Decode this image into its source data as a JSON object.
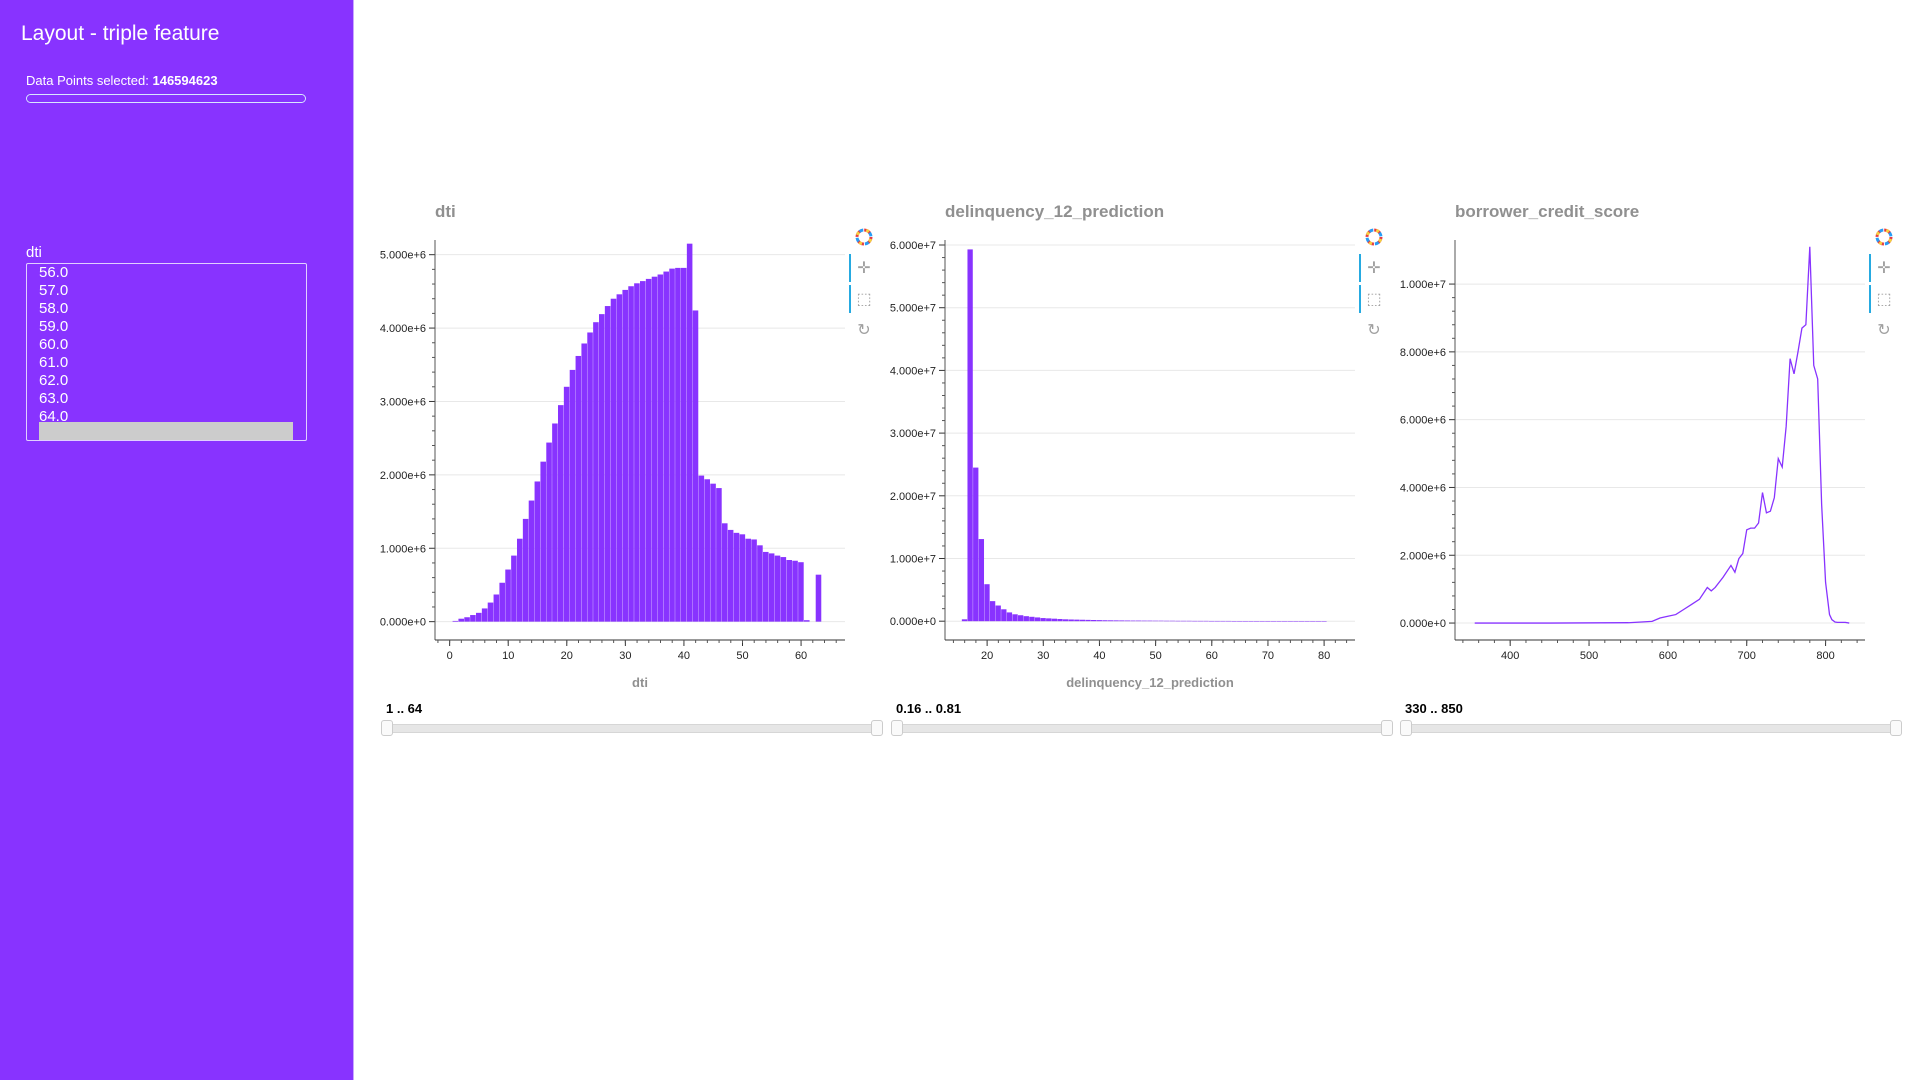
{
  "sidebar": {
    "title": "Layout - triple feature",
    "data_points_label": "Data Points selected:",
    "data_points_value": "146594623",
    "progress_fraction": 1.0,
    "list_label": "dti",
    "list_items": [
      "56.0",
      "57.0",
      "58.0",
      "59.0",
      "60.0",
      "61.0",
      "62.0",
      "63.0",
      "64.0"
    ]
  },
  "colors": {
    "sidebar_bg": "#8833ff",
    "bar_fill": "#8833ff",
    "toolbar_active": "#26aae1",
    "title_gray": "#909090"
  },
  "toolbar_icons": [
    "bokeh-logo-icon",
    "pan-icon",
    "box-select-icon",
    "reset-icon"
  ],
  "sliders": [
    {
      "label": "1 .. 64",
      "low": 1,
      "high": 64
    },
    {
      "label": "0.16 .. 0.81",
      "low": 0.16,
      "high": 0.81
    },
    {
      "label": "330 .. 850",
      "low": 330,
      "high": 850
    }
  ],
  "chart_data": [
    {
      "type": "bar",
      "title": "dti",
      "xlabel": "dti",
      "ylabel": "",
      "xlim": [
        -2.5,
        67.5
      ],
      "ylim": [
        -250000,
        5200000
      ],
      "xticks": [
        0,
        10,
        20,
        30,
        40,
        50,
        60
      ],
      "yticks": [
        0,
        1000000,
        2000000,
        3000000,
        4000000,
        5000000
      ],
      "ytick_labels": [
        "0.000e+0",
        "1.000e+6",
        "2.000e+6",
        "3.000e+6",
        "4.000e+6",
        "5.000e+6"
      ],
      "grid": true,
      "bar_width": 1,
      "x": [
        1,
        2,
        3,
        4,
        5,
        6,
        7,
        8,
        9,
        10,
        11,
        12,
        13,
        14,
        15,
        16,
        17,
        18,
        19,
        20,
        21,
        22,
        23,
        24,
        25,
        26,
        27,
        28,
        29,
        30,
        31,
        32,
        33,
        34,
        35,
        36,
        37,
        38,
        39,
        40,
        41,
        42,
        43,
        44,
        45,
        46,
        47,
        48,
        49,
        50,
        51,
        52,
        53,
        54,
        55,
        56,
        57,
        58,
        59,
        60,
        61,
        62,
        63,
        64
      ],
      "values": [
        10000,
        40000,
        60000,
        90000,
        120000,
        180000,
        260000,
        370000,
        530000,
        710000,
        900000,
        1130000,
        1400000,
        1650000,
        1910000,
        2180000,
        2440000,
        2700000,
        2950000,
        3200000,
        3430000,
        3620000,
        3790000,
        3940000,
        4080000,
        4190000,
        4300000,
        4400000,
        4460000,
        4520000,
        4570000,
        4610000,
        4640000,
        4670000,
        4700000,
        4730000,
        4770000,
        4810000,
        4820000,
        4820000,
        5150000,
        4240000,
        1990000,
        1940000,
        1880000,
        1820000,
        1340000,
        1250000,
        1210000,
        1190000,
        1130000,
        1120000,
        1040000,
        950000,
        930000,
        900000,
        880000,
        840000,
        830000,
        810000,
        20000,
        0,
        640000,
        0
      ]
    },
    {
      "type": "bar",
      "title": "delinquency_12_prediction",
      "xlabel": "delinquency_12_prediction",
      "ylabel": "",
      "xlim": [
        12.5,
        85.5
      ],
      "ylim": [
        -3000000,
        60800000
      ],
      "xticks": [
        20,
        30,
        40,
        50,
        60,
        70,
        80
      ],
      "yticks": [
        0,
        10000000,
        20000000,
        30000000,
        40000000,
        50000000,
        60000000
      ],
      "ytick_labels": [
        "0.000e+0",
        "1.000e+7",
        "2.000e+7",
        "3.000e+7",
        "4.000e+7",
        "5.000e+7",
        "6.000e+7"
      ],
      "grid": true,
      "bar_width": 1,
      "x": [
        16,
        17,
        18,
        19,
        20,
        21,
        22,
        23,
        24,
        25,
        26,
        27,
        28,
        29,
        30,
        31,
        32,
        33,
        34,
        35,
        36,
        37,
        38,
        39,
        40,
        41,
        42,
        43,
        44,
        45,
        46,
        47,
        48,
        49,
        50,
        51,
        52,
        53,
        54,
        55,
        56,
        57,
        58,
        59,
        60,
        61,
        62,
        63,
        64,
        65,
        66,
        67,
        68,
        69,
        70,
        71,
        72,
        73,
        74,
        75,
        76,
        77,
        78,
        79,
        80
      ],
      "values": [
        300000,
        59300000,
        24500000,
        13100000,
        5900000,
        3200000,
        2500000,
        1900000,
        1400000,
        1100000,
        950000,
        800000,
        700000,
        600000,
        500000,
        450000,
        400000,
        350000,
        300000,
        270000,
        250000,
        230000,
        210000,
        190000,
        170000,
        150000,
        140000,
        130000,
        120000,
        110000,
        100000,
        100000,
        90000,
        90000,
        80000,
        80000,
        70000,
        70000,
        60000,
        60000,
        60000,
        50000,
        50000,
        50000,
        40000,
        40000,
        40000,
        40000,
        30000,
        30000,
        30000,
        30000,
        30000,
        30000,
        20000,
        20000,
        20000,
        20000,
        20000,
        20000,
        20000,
        20000,
        20000,
        20000,
        20000
      ]
    },
    {
      "type": "line",
      "title": "borrower_credit_score",
      "xlabel": "",
      "ylabel": "",
      "xlim": [
        330,
        850
      ],
      "ylim": [
        -500000,
        11300000
      ],
      "xticks": [
        400,
        500,
        600,
        700,
        800
      ],
      "yticks": [
        0,
        2000000,
        4000000,
        6000000,
        8000000,
        10000000
      ],
      "ytick_labels": [
        "0.000e+0",
        "2.000e+6",
        "4.000e+6",
        "6.000e+6",
        "8.000e+6",
        "1.000e+7"
      ],
      "grid": true,
      "x": [
        355,
        450,
        550,
        580,
        590,
        600,
        610,
        620,
        630,
        640,
        650,
        655,
        660,
        670,
        680,
        685,
        690,
        695,
        700,
        705,
        710,
        715,
        720,
        725,
        730,
        735,
        740,
        745,
        750,
        755,
        760,
        765,
        770,
        775,
        780,
        785,
        790,
        795,
        800,
        805,
        808,
        812,
        815,
        820,
        825,
        830
      ],
      "values": [
        0,
        0,
        10000,
        50000,
        150000,
        200000,
        250000,
        400000,
        550000,
        700000,
        1050000,
        950000,
        1050000,
        1350000,
        1700000,
        1500000,
        1900000,
        2050000,
        2750000,
        2800000,
        2800000,
        2950000,
        3850000,
        3250000,
        3300000,
        3700000,
        4850000,
        4600000,
        5800000,
        7800000,
        7350000,
        8000000,
        8700000,
        8800000,
        11100000,
        7600000,
        7200000,
        3500000,
        1200000,
        250000,
        100000,
        30000,
        20000,
        20000,
        20000,
        0
      ]
    }
  ]
}
